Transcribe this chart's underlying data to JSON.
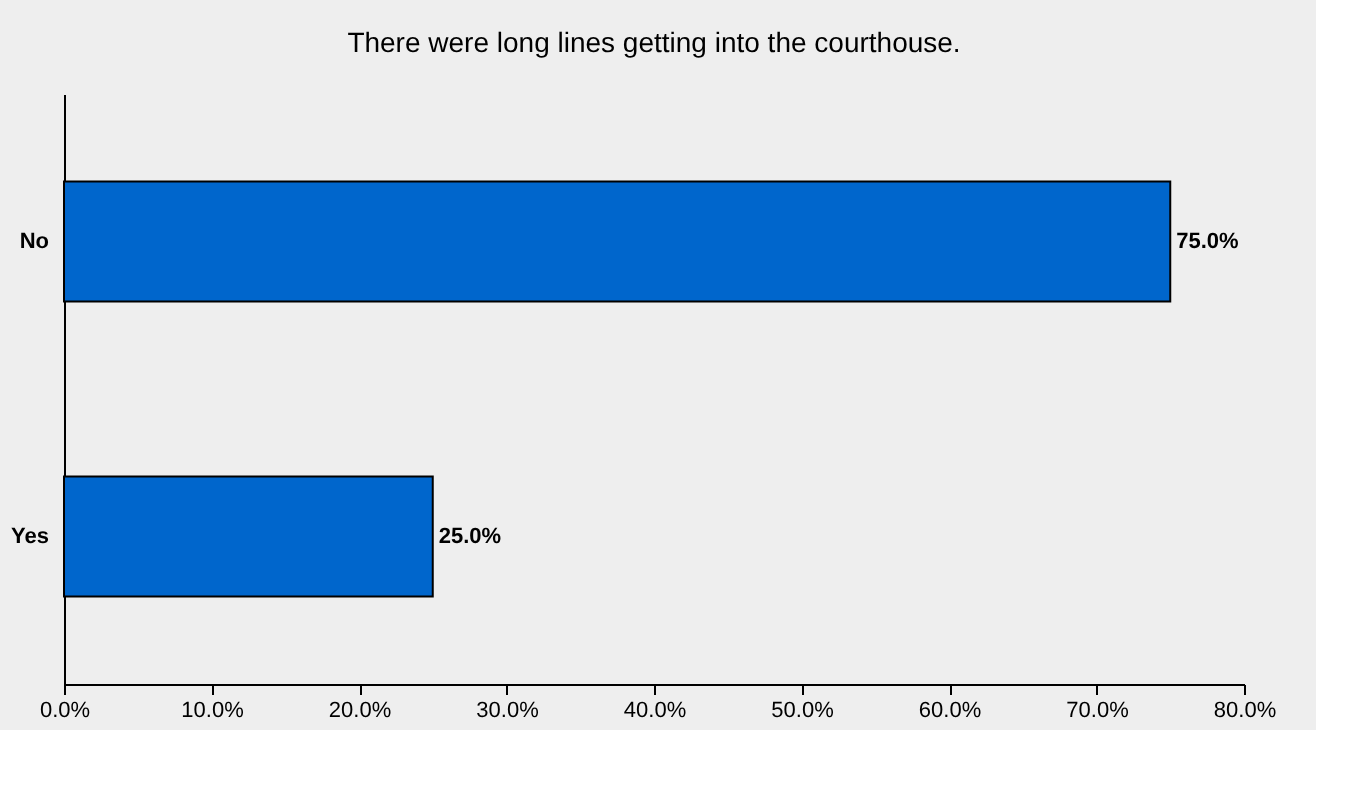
{
  "chart_data": {
    "type": "bar",
    "orientation": "horizontal",
    "title": "There were long lines getting into the courthouse.",
    "categories": [
      "No",
      "Yes"
    ],
    "values": [
      75,
      25
    ],
    "color": "#0066cc",
    "value_labels": [
      "75.0%",
      "25.0%"
    ],
    "xlim": [
      0,
      80
    ],
    "xticks": [
      {
        "value": 0,
        "label": "0.0%"
      },
      {
        "value": 10,
        "label": "10.0%"
      },
      {
        "value": 20,
        "label": "20.0%"
      },
      {
        "value": 30,
        "label": "30.0%"
      },
      {
        "value": 40,
        "label": "40.0%"
      },
      {
        "value": 50,
        "label": "50.0%"
      },
      {
        "value": 60,
        "label": "60.0%"
      },
      {
        "value": 70,
        "label": "70.0%"
      },
      {
        "value": 80,
        "label": "80.0%"
      }
    ],
    "grid": false
  }
}
